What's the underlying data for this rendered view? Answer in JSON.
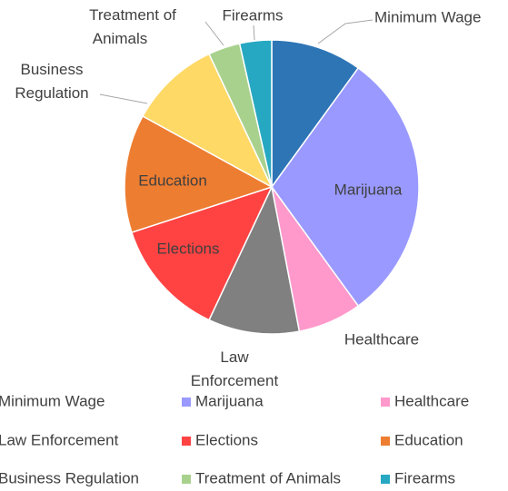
{
  "chart_data": {
    "type": "pie",
    "categories": [
      "Minimum Wage",
      "Marijuana",
      "Healthcare",
      "Law Enforcement",
      "Elections",
      "Education",
      "Business Regulation",
      "Treatment of Animals",
      "Firearms"
    ],
    "values": [
      10,
      30,
      7,
      10,
      13,
      13,
      10,
      3.5,
      3.5
    ],
    "colors": [
      "#2e75b6",
      "#9999ff",
      "#ff99cc",
      "#808080",
      "#ff4343",
      "#ed7d31",
      "#ffd966",
      "#a9d18e",
      "#27a8c2"
    ],
    "legend": "bottom"
  }
}
